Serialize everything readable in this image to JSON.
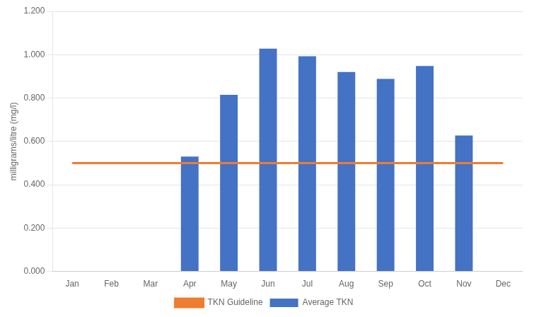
{
  "chart_data": {
    "type": "bar",
    "ylabel": "milligrams/litre (mg/l)",
    "categories": [
      "Jan",
      "Feb",
      "Mar",
      "Apr",
      "May",
      "Jun",
      "Jul",
      "Aug",
      "Sep",
      "Oct",
      "Nov",
      "Dec"
    ],
    "series": [
      {
        "name": "Average TKN",
        "color": "#4472C4",
        "values": [
          0,
          0,
          0,
          0.53,
          0.815,
          1.028,
          0.993,
          0.92,
          0.888,
          0.948,
          0.627,
          0
        ]
      },
      {
        "name": "TKN Guideline",
        "type": "line",
        "color": "#ED7D31",
        "values": [
          0.5,
          0.5,
          0.5,
          0.5,
          0.5,
          0.5,
          0.5,
          0.5,
          0.5,
          0.5,
          0.5,
          0.5
        ]
      }
    ],
    "ylim": [
      0,
      1.2
    ],
    "yticks": [
      {
        "value": 0.0,
        "label": "0.000"
      },
      {
        "value": 0.2,
        "label": "0.200"
      },
      {
        "value": 0.4,
        "label": "0.400"
      },
      {
        "value": 0.6,
        "label": "0.600"
      },
      {
        "value": 0.8,
        "label": "0.800"
      },
      {
        "value": 1.0,
        "label": "1.000"
      },
      {
        "value": 1.2,
        "label": "1.200"
      }
    ],
    "grid": true,
    "legend": "bottom"
  }
}
